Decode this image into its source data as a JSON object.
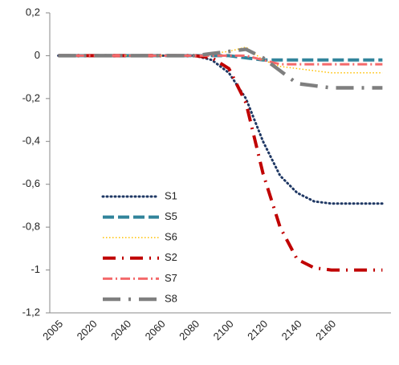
{
  "chart_data": {
    "type": "line",
    "categories": [
      "2005",
      null,
      "2020",
      null,
      "2040",
      null,
      "2060",
      null,
      "2080",
      null,
      "2100",
      null,
      "2120",
      null,
      "2140",
      null,
      "2160",
      null,
      null,
      null
    ],
    "ylim": [
      -1.2,
      0.2
    ],
    "yticks": [
      {
        "value": -1.2,
        "label": "-1,2"
      },
      {
        "value": -1,
        "label": "-1"
      },
      {
        "value": -0.8,
        "label": "-0,8"
      },
      {
        "value": -0.6,
        "label": "-0,6"
      },
      {
        "value": -0.4,
        "label": "-0,4"
      },
      {
        "value": -0.2,
        "label": "-0,2"
      },
      {
        "value": 0,
        "label": "0"
      },
      {
        "value": 0.2,
        "label": "0,2"
      }
    ],
    "series": [
      {
        "name": "S1",
        "color": "#1f3864",
        "values": [
          0,
          0,
          0,
          0,
          0,
          0,
          0,
          0,
          0,
          -0.02,
          -0.08,
          -0.2,
          -0.4,
          -0.56,
          -0.64,
          -0.68,
          -0.69,
          -0.69,
          -0.69,
          -0.69
        ]
      },
      {
        "name": "S5",
        "color": "#31849b",
        "values": [
          0,
          0,
          0,
          0,
          0,
          0,
          0,
          0,
          0,
          0,
          0,
          -0.01,
          -0.02,
          -0.02,
          -0.02,
          -0.02,
          -0.02,
          -0.02,
          -0.02,
          -0.02
        ]
      },
      {
        "name": "S6",
        "color": "#ffc000",
        "values": [
          0,
          0,
          0,
          0,
          0,
          0,
          0,
          0,
          0,
          0.01,
          0.02,
          0.04,
          -0.02,
          -0.05,
          -0.06,
          -0.07,
          -0.08,
          -0.08,
          -0.08,
          -0.08
        ]
      },
      {
        "name": "S2",
        "color": "#c00000",
        "values": [
          0,
          0,
          0,
          0,
          0,
          0,
          0,
          0,
          0,
          -0.01,
          -0.06,
          -0.22,
          -0.55,
          -0.8,
          -0.95,
          -0.99,
          -1,
          -1,
          -1,
          -1
        ]
      },
      {
        "name": "S7",
        "color": "#f4696b",
        "values": [
          0,
          0,
          0,
          0,
          0,
          0,
          0,
          0,
          0,
          0,
          0,
          0,
          -0.02,
          -0.04,
          -0.04,
          -0.04,
          -0.04,
          -0.04,
          -0.04,
          -0.04
        ]
      },
      {
        "name": "S8",
        "color": "#7f7f7f",
        "values": [
          0,
          0,
          0,
          0,
          0,
          0,
          0,
          0,
          0,
          0.01,
          0.02,
          0.03,
          -0.01,
          -0.07,
          -0.13,
          -0.14,
          -0.15,
          -0.15,
          -0.15,
          -0.15
        ]
      }
    ]
  }
}
